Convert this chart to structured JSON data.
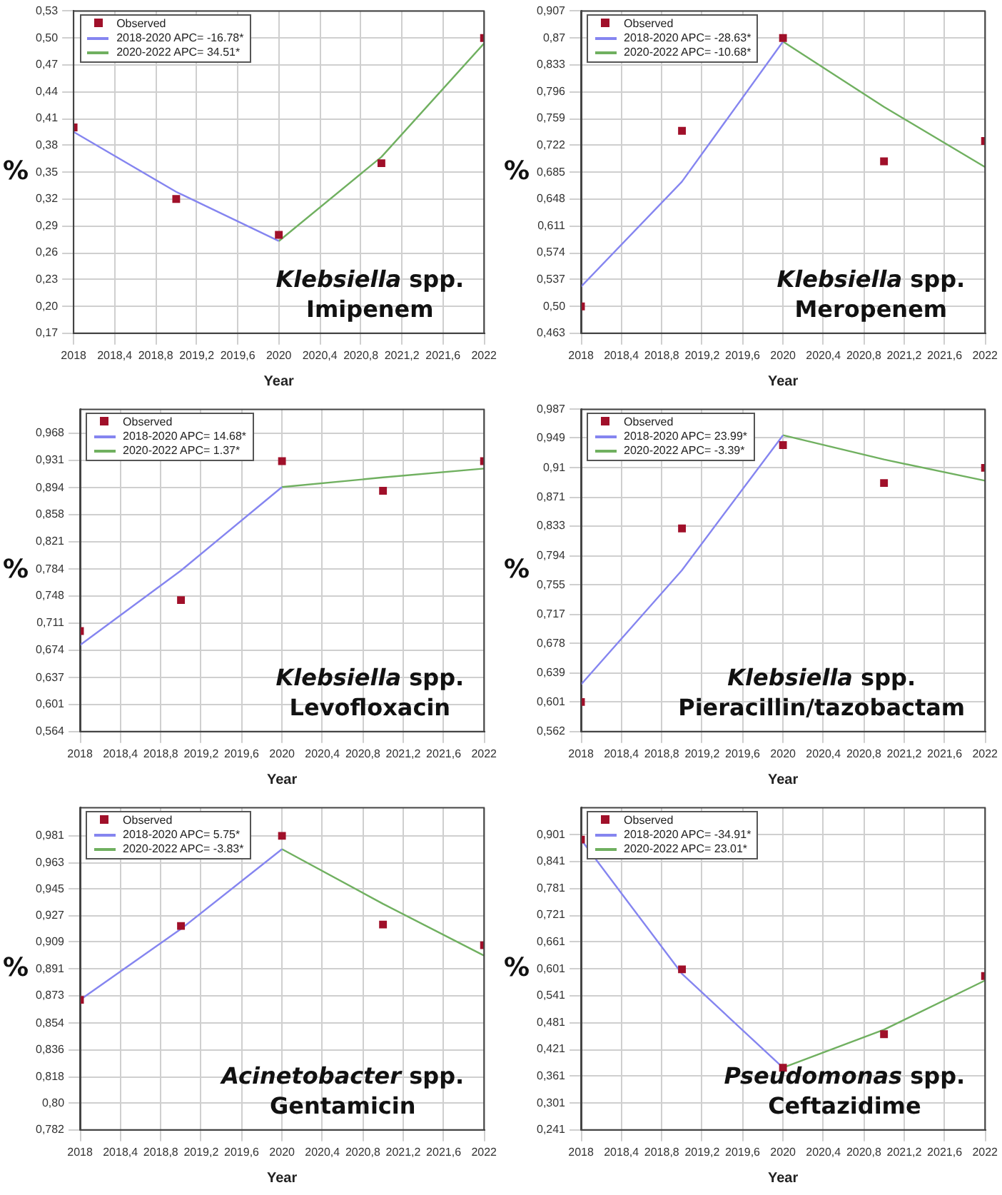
{
  "chart_data": [
    {
      "type": "line",
      "xlabel": "Year",
      "ylabel": "%",
      "annotations": [
        "Klebsiella spp.",
        "Imipenem"
      ],
      "legend": "top left",
      "grid": true,
      "xlim": [
        2018,
        2022
      ],
      "xticks": [
        2018,
        {
          "value": 2018.4,
          "label": "2018,4"
        },
        {
          "value": 2018.8,
          "label": "2018,8"
        },
        {
          "value": 2019.2,
          "label": "2019,2"
        },
        {
          "value": 2019.6,
          "label": "2019,6"
        },
        2020,
        {
          "value": 2020.4,
          "label": "2020,4"
        },
        {
          "value": 2020.8,
          "label": "2020,8"
        },
        {
          "value": 2021.2,
          "label": "2021,2"
        },
        {
          "value": 2021.6,
          "label": "2021,6"
        },
        2022
      ],
      "ylim": [
        0.17,
        0.53
      ],
      "yticks": [
        {
          "value": 0.17,
          "label": "0,17"
        },
        {
          "value": 0.2,
          "label": "0,20"
        },
        {
          "value": 0.23,
          "label": "0,23"
        },
        {
          "value": 0.26,
          "label": "0,26"
        },
        {
          "value": 0.29,
          "label": "0,29"
        },
        {
          "value": 0.32,
          "label": "0,32"
        },
        {
          "value": 0.35,
          "label": "0,35"
        },
        {
          "value": 0.38,
          "label": "0,38"
        },
        {
          "value": 0.41,
          "label": "0,41"
        },
        {
          "value": 0.44,
          "label": "0,44"
        },
        {
          "value": 0.47,
          "label": "0,47"
        },
        {
          "value": 0.5,
          "label": "0,50"
        },
        {
          "value": 0.53,
          "label": "0,53"
        }
      ],
      "series": [
        {
          "name": "Observed",
          "type": "scatter",
          "marker": "square",
          "color": "#a0102a",
          "x": [
            2018,
            2019,
            2020,
            2021,
            2022
          ],
          "values": [
            0.4,
            0.32,
            0.28,
            0.36,
            0.5
          ]
        },
        {
          "name": "2018-2020 APC= -16.78*",
          "type": "line",
          "color": "#8585f0",
          "x": [
            2018,
            2019,
            2020
          ],
          "values": [
            0.395,
            0.328,
            0.273
          ]
        },
        {
          "name": "2020-2022 APC= 34.51*",
          "type": "line",
          "color": "#70b060",
          "x": [
            2020,
            2021,
            2022
          ],
          "values": [
            0.273,
            0.367,
            0.494
          ]
        }
      ]
    },
    {
      "type": "line",
      "xlabel": "Year",
      "ylabel": "%",
      "annotations": [
        "Klebsiella spp.",
        "Meropenem"
      ],
      "legend": "top left",
      "grid": true,
      "xlim": [
        2018,
        2022
      ],
      "xticks": [
        2018,
        {
          "value": 2018.4,
          "label": "2018,4"
        },
        {
          "value": 2018.8,
          "label": "2018,8"
        },
        {
          "value": 2019.2,
          "label": "2019,2"
        },
        {
          "value": 2019.6,
          "label": "2019,6"
        },
        2020,
        {
          "value": 2020.4,
          "label": "2020,4"
        },
        {
          "value": 2020.8,
          "label": "2020,8"
        },
        {
          "value": 2021.2,
          "label": "2021,2"
        },
        {
          "value": 2021.6,
          "label": "2021,6"
        },
        2022
      ],
      "ylim": [
        0.463,
        0.907
      ],
      "yticks": [
        {
          "value": 0.463,
          "label": "0,463"
        },
        {
          "value": 0.5,
          "label": "0,50"
        },
        {
          "value": 0.537,
          "label": "0,537"
        },
        {
          "value": 0.574,
          "label": "0,574"
        },
        {
          "value": 0.611,
          "label": "0,611"
        },
        {
          "value": 0.648,
          "label": "0,648"
        },
        {
          "value": 0.685,
          "label": "0,685"
        },
        {
          "value": 0.722,
          "label": "0,722"
        },
        {
          "value": 0.759,
          "label": "0,759"
        },
        {
          "value": 0.796,
          "label": "0,796"
        },
        {
          "value": 0.833,
          "label": "0,833"
        },
        {
          "value": 0.87,
          "label": "0,87"
        },
        {
          "value": 0.907,
          "label": "0,907"
        }
      ],
      "series": [
        {
          "name": "Observed",
          "type": "scatter",
          "marker": "square",
          "color": "#a0102a",
          "x": [
            2018,
            2019,
            2020,
            2021,
            2022
          ],
          "values": [
            0.5,
            0.742,
            0.87,
            0.7,
            0.728
          ]
        },
        {
          "name": "2018-2020 APC= -28.63*",
          "type": "line",
          "color": "#8585f0",
          "x": [
            2018,
            2019,
            2020
          ],
          "values": [
            0.527,
            0.672,
            0.865
          ]
        },
        {
          "name": "2020-2022 APC= -10.68*",
          "type": "line",
          "color": "#70b060",
          "x": [
            2020,
            2021,
            2022
          ],
          "values": [
            0.865,
            0.775,
            0.692
          ]
        }
      ]
    },
    {
      "type": "line",
      "xlabel": "Year",
      "ylabel": "%",
      "annotations": [
        "Klebsiella spp.",
        "Levofloxacin"
      ],
      "legend": "top left",
      "grid": true,
      "xlim": [
        2018,
        2022
      ],
      "xticks": [
        2018,
        {
          "value": 2018.4,
          "label": "2018,4"
        },
        {
          "value": 2018.8,
          "label": "2018,8"
        },
        {
          "value": 2019.2,
          "label": "2019,2"
        },
        {
          "value": 2019.6,
          "label": "2019,6"
        },
        2020,
        {
          "value": 2020.4,
          "label": "2020,4"
        },
        {
          "value": 2020.8,
          "label": "2020,8"
        },
        {
          "value": 2021.2,
          "label": "2021,2"
        },
        {
          "value": 2021.6,
          "label": "2021,6"
        },
        2022
      ],
      "ylim": [
        0.564,
        1.0
      ],
      "yticks": [
        {
          "value": 0.564,
          "label": "0,564"
        },
        {
          "value": 0.601,
          "label": "0,601"
        },
        {
          "value": 0.637,
          "label": "0,637"
        },
        {
          "value": 0.674,
          "label": "0,674"
        },
        {
          "value": 0.711,
          "label": "0,711"
        },
        {
          "value": 0.748,
          "label": "0,748"
        },
        {
          "value": 0.784,
          "label": "0,784"
        },
        {
          "value": 0.821,
          "label": "0,821"
        },
        {
          "value": 0.858,
          "label": "0,858"
        },
        {
          "value": 0.894,
          "label": "0,894"
        },
        {
          "value": 0.931,
          "label": "0,931"
        },
        {
          "value": 0.968,
          "label": "0,968"
        }
      ],
      "series": [
        {
          "name": "Observed",
          "type": "scatter",
          "marker": "square",
          "color": "#a0102a",
          "x": [
            2018,
            2019,
            2020,
            2021,
            2022
          ],
          "values": [
            0.7,
            0.742,
            0.93,
            0.89,
            0.93
          ]
        },
        {
          "name": "2018-2020 APC= 14.68*",
          "type": "line",
          "color": "#8585f0",
          "x": [
            2018,
            2019,
            2020
          ],
          "values": [
            0.681,
            0.782,
            0.895
          ]
        },
        {
          "name": "2020-2022 APC= 1.37*",
          "type": "line",
          "color": "#70b060",
          "x": [
            2020,
            2021,
            2022
          ],
          "values": [
            0.895,
            0.908,
            0.92
          ]
        }
      ]
    },
    {
      "type": "line",
      "xlabel": "Year",
      "ylabel": "%",
      "annotations": [
        "Klebsiella spp.",
        "Pieracillin/tazobactam"
      ],
      "legend": "top left",
      "grid": true,
      "xlim": [
        2018,
        2022
      ],
      "xticks": [
        2018,
        {
          "value": 2018.4,
          "label": "2018,4"
        },
        {
          "value": 2018.8,
          "label": "2018,8"
        },
        {
          "value": 2019.2,
          "label": "2019,2"
        },
        {
          "value": 2019.6,
          "label": "2019,6"
        },
        2020,
        {
          "value": 2020.4,
          "label": "2020,4"
        },
        {
          "value": 2020.8,
          "label": "2020,8"
        },
        {
          "value": 2021.2,
          "label": "2021,2"
        },
        {
          "value": 2021.6,
          "label": "2021,6"
        },
        2022
      ],
      "ylim": [
        0.562,
        0.987
      ],
      "yticks": [
        {
          "value": 0.562,
          "label": "0,562"
        },
        {
          "value": 0.601,
          "label": "0,601"
        },
        {
          "value": 0.639,
          "label": "0,639"
        },
        {
          "value": 0.678,
          "label": "0,678"
        },
        {
          "value": 0.717,
          "label": "0,717"
        },
        {
          "value": 0.755,
          "label": "0,755"
        },
        {
          "value": 0.794,
          "label": "0,794"
        },
        {
          "value": 0.833,
          "label": "0,833"
        },
        {
          "value": 0.871,
          "label": "0,871"
        },
        {
          "value": 0.91,
          "label": "0,91"
        },
        {
          "value": 0.949,
          "label": "0,949"
        },
        {
          "value": 0.987,
          "label": "0,987"
        }
      ],
      "series": [
        {
          "name": "Observed",
          "type": "scatter",
          "marker": "square",
          "color": "#a0102a",
          "x": [
            2018,
            2019,
            2020,
            2021,
            2022
          ],
          "values": [
            0.601,
            0.83,
            0.94,
            0.89,
            0.91
          ]
        },
        {
          "name": "2018-2020 APC= 23.99*",
          "type": "line",
          "color": "#8585f0",
          "x": [
            2018,
            2019,
            2020
          ],
          "values": [
            0.624,
            0.775,
            0.953
          ]
        },
        {
          "name": "2020-2022 APC= -3.39*",
          "type": "line",
          "color": "#70b060",
          "x": [
            2020,
            2021,
            2022
          ],
          "values": [
            0.953,
            0.921,
            0.893
          ]
        }
      ]
    },
    {
      "type": "line",
      "xlabel": "Year",
      "ylabel": "%",
      "annotations": [
        "Acinetobacter spp.",
        "Gentamicin"
      ],
      "legend": "top left",
      "grid": true,
      "xlim": [
        2018,
        2022
      ],
      "xticks": [
        2018,
        {
          "value": 2018.4,
          "label": "2018,4"
        },
        {
          "value": 2018.8,
          "label": "2018,8"
        },
        {
          "value": 2019.2,
          "label": "2019,2"
        },
        {
          "value": 2019.6,
          "label": "2019,6"
        },
        2020,
        {
          "value": 2020.4,
          "label": "2020,4"
        },
        {
          "value": 2020.8,
          "label": "2020,8"
        },
        {
          "value": 2021.2,
          "label": "2021,2"
        },
        {
          "value": 2021.6,
          "label": "2021,6"
        },
        2022
      ],
      "ylim": [
        0.782,
        1.0
      ],
      "yticks": [
        {
          "value": 0.782,
          "label": "0,782"
        },
        {
          "value": 0.8,
          "label": "0,80"
        },
        {
          "value": 0.818,
          "label": "0,818"
        },
        {
          "value": 0.836,
          "label": "0,836"
        },
        {
          "value": 0.854,
          "label": "0,854"
        },
        {
          "value": 0.873,
          "label": "0,873"
        },
        {
          "value": 0.891,
          "label": "0,891"
        },
        {
          "value": 0.909,
          "label": "0,909"
        },
        {
          "value": 0.927,
          "label": "0,927"
        },
        {
          "value": 0.945,
          "label": "0,945"
        },
        {
          "value": 0.963,
          "label": "0,963"
        },
        {
          "value": 0.981,
          "label": "0,981"
        }
      ],
      "series": [
        {
          "name": "Observed",
          "type": "scatter",
          "marker": "square",
          "color": "#a0102a",
          "x": [
            2018,
            2019,
            2020,
            2021,
            2022
          ],
          "values": [
            0.87,
            0.92,
            0.981,
            0.921,
            0.907
          ]
        },
        {
          "name": "2018-2020 APC= 5.75*",
          "type": "line",
          "color": "#8585f0",
          "x": [
            2018,
            2019,
            2020
          ],
          "values": [
            0.87,
            0.918,
            0.972
          ]
        },
        {
          "name": "2020-2022 APC= -3.83*",
          "type": "line",
          "color": "#70b060",
          "x": [
            2020,
            2021,
            2022
          ],
          "values": [
            0.972,
            0.935,
            0.9
          ]
        }
      ]
    },
    {
      "type": "line",
      "xlabel": "Year",
      "ylabel": "%",
      "annotations": [
        "Pseudomonas spp.",
        "Ceftazidime"
      ],
      "legend": "top left",
      "grid": true,
      "xlim": [
        2018,
        2022
      ],
      "xticks": [
        2018,
        {
          "value": 2018.4,
          "label": "2018,4"
        },
        {
          "value": 2018.8,
          "label": "2018,8"
        },
        {
          "value": 2019.2,
          "label": "2019,2"
        },
        {
          "value": 2019.6,
          "label": "2019,6"
        },
        2020,
        {
          "value": 2020.4,
          "label": "2020,4"
        },
        {
          "value": 2020.8,
          "label": "2020,8"
        },
        {
          "value": 2021.2,
          "label": "2021,2"
        },
        {
          "value": 2021.6,
          "label": "2021,6"
        },
        2022
      ],
      "ylim": [
        0.241,
        0.961
      ],
      "yticks": [
        {
          "value": 0.241,
          "label": "0,241"
        },
        {
          "value": 0.301,
          "label": "0,301"
        },
        {
          "value": 0.361,
          "label": "0,361"
        },
        {
          "value": 0.421,
          "label": "0,421"
        },
        {
          "value": 0.481,
          "label": "0,481"
        },
        {
          "value": 0.541,
          "label": "0,541"
        },
        {
          "value": 0.601,
          "label": "0,601"
        },
        {
          "value": 0.661,
          "label": "0,661"
        },
        {
          "value": 0.721,
          "label": "0,721"
        },
        {
          "value": 0.781,
          "label": "0,781"
        },
        {
          "value": 0.841,
          "label": "0,841"
        },
        {
          "value": 0.901,
          "label": "0,901"
        }
      ],
      "series": [
        {
          "name": "Observed",
          "type": "scatter",
          "marker": "square",
          "color": "#a0102a",
          "x": [
            2018,
            2019,
            2020,
            2021,
            2022
          ],
          "values": [
            0.89,
            0.6,
            0.38,
            0.455,
            0.585
          ]
        },
        {
          "name": "2018-2020 APC= -34.91*",
          "type": "line",
          "color": "#8585f0",
          "x": [
            2018,
            2019,
            2020
          ],
          "values": [
            0.89,
            0.59,
            0.38
          ]
        },
        {
          "name": "2020-2022 APC= 23.01*",
          "type": "line",
          "color": "#70b060",
          "x": [
            2020,
            2021,
            2022
          ],
          "values": [
            0.38,
            0.465,
            0.575
          ]
        }
      ]
    }
  ]
}
